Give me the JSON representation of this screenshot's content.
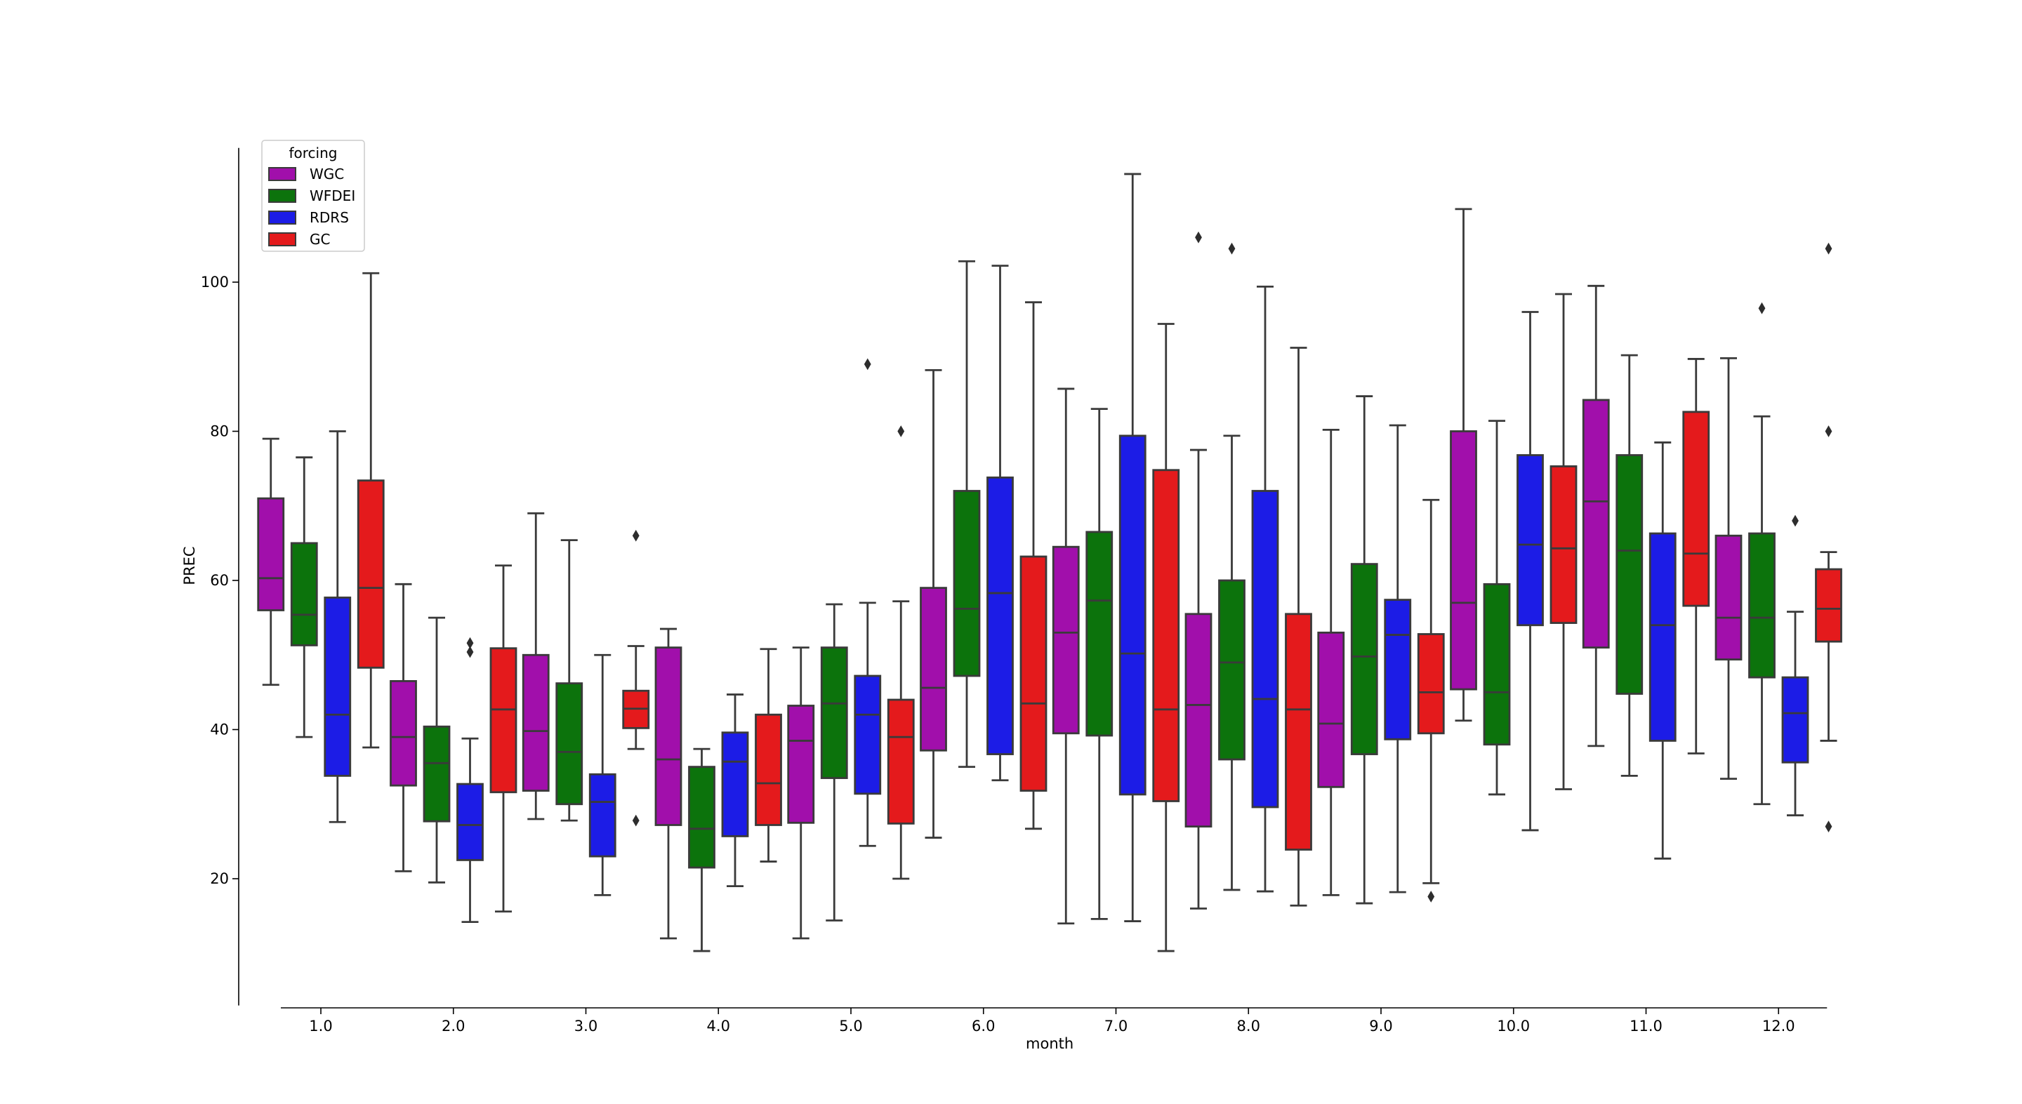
{
  "chart_data": {
    "type": "box",
    "title": "",
    "xlabel": "month",
    "ylabel": "PREC",
    "categories": [
      "1.0",
      "2.0",
      "3.0",
      "4.0",
      "5.0",
      "6.0",
      "7.0",
      "8.0",
      "9.0",
      "10.0",
      "11.0",
      "12.0"
    ],
    "ylim": [
      3,
      118
    ],
    "yticks": [
      20,
      40,
      60,
      80,
      100
    ],
    "legend": {
      "title": "forcing",
      "position": "top-left"
    },
    "grid": false,
    "series": [
      {
        "name": "WGC",
        "color": "#a10fab",
        "boxes": [
          {
            "whislo": 46,
            "q1": 56,
            "med": 60.3,
            "q3": 71,
            "whishi": 79,
            "fliers": []
          },
          {
            "whislo": 21,
            "q1": 32.5,
            "med": 39,
            "q3": 46.5,
            "whishi": 59.5,
            "fliers": []
          },
          {
            "whislo": 28,
            "q1": 31.8,
            "med": 39.8,
            "q3": 50,
            "whishi": 69,
            "fliers": []
          },
          {
            "whislo": 12,
            "q1": 27.2,
            "med": 36,
            "q3": 51,
            "whishi": 53.5,
            "fliers": []
          },
          {
            "whislo": 12,
            "q1": 27.5,
            "med": 38.5,
            "q3": 43.2,
            "whishi": 51,
            "fliers": []
          },
          {
            "whislo": 25.5,
            "q1": 37.2,
            "med": 45.6,
            "q3": 59,
            "whishi": 88.2,
            "fliers": []
          },
          {
            "whislo": 14,
            "q1": 39.5,
            "med": 53,
            "q3": 64.5,
            "whishi": 85.7,
            "fliers": []
          },
          {
            "whislo": 16,
            "q1": 27,
            "med": 43.3,
            "q3": 55.5,
            "whishi": 77.5,
            "fliers": [
              106
            ]
          },
          {
            "whislo": 17.8,
            "q1": 32.3,
            "med": 40.8,
            "q3": 53,
            "whishi": 80.2,
            "fliers": []
          },
          {
            "whislo": 41.2,
            "q1": 45.4,
            "med": 57,
            "q3": 80,
            "whishi": 109.8,
            "fliers": []
          },
          {
            "whislo": 37.8,
            "q1": 51,
            "med": 70.6,
            "q3": 84.2,
            "whishi": 99.5,
            "fliers": []
          },
          {
            "whislo": 33.4,
            "q1": 49.4,
            "med": 55,
            "q3": 66,
            "whishi": 89.8,
            "fliers": []
          }
        ]
      },
      {
        "name": "WFDEI",
        "color": "#0c730c",
        "boxes": [
          {
            "whislo": 39,
            "q1": 51.3,
            "med": 55.4,
            "q3": 65,
            "whishi": 76.5,
            "fliers": []
          },
          {
            "whislo": 19.5,
            "q1": 27.7,
            "med": 35.5,
            "q3": 40.4,
            "whishi": 55,
            "fliers": []
          },
          {
            "whislo": 27.8,
            "q1": 30,
            "med": 37,
            "q3": 46.2,
            "whishi": 65.4,
            "fliers": []
          },
          {
            "whislo": 10.3,
            "q1": 21.5,
            "med": 26.7,
            "q3": 35,
            "whishi": 37.4,
            "fliers": []
          },
          {
            "whislo": 14.4,
            "q1": 33.5,
            "med": 43.5,
            "q3": 51,
            "whishi": 56.8,
            "fliers": []
          },
          {
            "whislo": 35,
            "q1": 47.2,
            "med": 56.2,
            "q3": 72,
            "whishi": 102.8,
            "fliers": []
          },
          {
            "whislo": 14.6,
            "q1": 39.2,
            "med": 57.3,
            "q3": 66.5,
            "whishi": 83,
            "fliers": []
          },
          {
            "whislo": 18.5,
            "q1": 36,
            "med": 49,
            "q3": 60,
            "whishi": 79.4,
            "fliers": [
              104.5
            ]
          },
          {
            "whislo": 16.7,
            "q1": 36.7,
            "med": 49.8,
            "q3": 62.2,
            "whishi": 84.7,
            "fliers": []
          },
          {
            "whislo": 31.3,
            "q1": 38,
            "med": 45,
            "q3": 59.5,
            "whishi": 81.4,
            "fliers": []
          },
          {
            "whislo": 33.8,
            "q1": 44.8,
            "med": 64,
            "q3": 76.8,
            "whishi": 90.2,
            "fliers": []
          },
          {
            "whislo": 30,
            "q1": 47,
            "med": 55,
            "q3": 66.3,
            "whishi": 82,
            "fliers": [
              96.5
            ]
          }
        ]
      },
      {
        "name": "RDRS",
        "color": "#1c1ce6",
        "boxes": [
          {
            "whislo": 27.6,
            "q1": 33.8,
            "med": 42,
            "q3": 57.7,
            "whishi": 80,
            "fliers": []
          },
          {
            "whislo": 14.2,
            "q1": 22.5,
            "med": 27.2,
            "q3": 32.7,
            "whishi": 38.8,
            "fliers": [
              50.4,
              51.6
            ]
          },
          {
            "whislo": 17.8,
            "q1": 23,
            "med": 30.3,
            "q3": 34,
            "whishi": 50,
            "fliers": []
          },
          {
            "whislo": 19,
            "q1": 25.7,
            "med": 35.7,
            "q3": 39.6,
            "whishi": 44.7,
            "fliers": []
          },
          {
            "whislo": 24.4,
            "q1": 31.4,
            "med": 42,
            "q3": 47.2,
            "whishi": 57,
            "fliers": [
              89
            ]
          },
          {
            "whislo": 33.2,
            "q1": 36.7,
            "med": 58.3,
            "q3": 73.8,
            "whishi": 102.2,
            "fliers": []
          },
          {
            "whislo": 14.3,
            "q1": 31.3,
            "med": 50.2,
            "q3": 79.4,
            "whishi": 114.5,
            "fliers": []
          },
          {
            "whislo": 18.3,
            "q1": 29.6,
            "med": 44.1,
            "q3": 72,
            "whishi": 99.4,
            "fliers": []
          },
          {
            "whislo": 18.2,
            "q1": 38.7,
            "med": 52.7,
            "q3": 57.4,
            "whishi": 80.8,
            "fliers": []
          },
          {
            "whislo": 26.5,
            "q1": 54,
            "med": 64.8,
            "q3": 76.8,
            "whishi": 96,
            "fliers": []
          },
          {
            "whislo": 22.7,
            "q1": 38.5,
            "med": 54,
            "q3": 66.3,
            "whishi": 78.5,
            "fliers": []
          },
          {
            "whislo": 28.5,
            "q1": 35.6,
            "med": 42.2,
            "q3": 47,
            "whishi": 55.8,
            "fliers": [
              68
            ]
          }
        ]
      },
      {
        "name": "GC",
        "color": "#e41a1c",
        "boxes": [
          {
            "whislo": 37.6,
            "q1": 48.3,
            "med": 59,
            "q3": 73.4,
            "whishi": 101.2,
            "fliers": []
          },
          {
            "whislo": 15.6,
            "q1": 31.6,
            "med": 42.7,
            "q3": 50.9,
            "whishi": 62,
            "fliers": []
          },
          {
            "whislo": 37.4,
            "q1": 40.2,
            "med": 42.8,
            "q3": 45.2,
            "whishi": 51.2,
            "fliers": [
              27.8,
              66
            ]
          },
          {
            "whislo": 22.3,
            "q1": 27.2,
            "med": 32.8,
            "q3": 42,
            "whishi": 50.8,
            "fliers": []
          },
          {
            "whislo": 20,
            "q1": 27.4,
            "med": 39,
            "q3": 44,
            "whishi": 57.2,
            "fliers": [
              80
            ]
          },
          {
            "whislo": 26.7,
            "q1": 31.8,
            "med": 43.5,
            "q3": 63.2,
            "whishi": 97.3,
            "fliers": []
          },
          {
            "whislo": 10.3,
            "q1": 30.4,
            "med": 42.7,
            "q3": 74.8,
            "whishi": 94.4,
            "fliers": []
          },
          {
            "whislo": 16.4,
            "q1": 23.9,
            "med": 42.7,
            "q3": 55.5,
            "whishi": 91.2,
            "fliers": []
          },
          {
            "whislo": 19.4,
            "q1": 39.5,
            "med": 45,
            "q3": 52.8,
            "whishi": 70.8,
            "fliers": [
              17.6
            ]
          },
          {
            "whislo": 32,
            "q1": 54.3,
            "med": 64.3,
            "q3": 75.3,
            "whishi": 98.4,
            "fliers": []
          },
          {
            "whislo": 36.8,
            "q1": 56.6,
            "med": 63.6,
            "q3": 82.6,
            "whishi": 89.7,
            "fliers": []
          },
          {
            "whislo": 38.5,
            "q1": 51.8,
            "med": 56.2,
            "q3": 61.5,
            "whishi": 63.8,
            "fliers": [
              27,
              80,
              104.5
            ]
          }
        ]
      }
    ]
  }
}
